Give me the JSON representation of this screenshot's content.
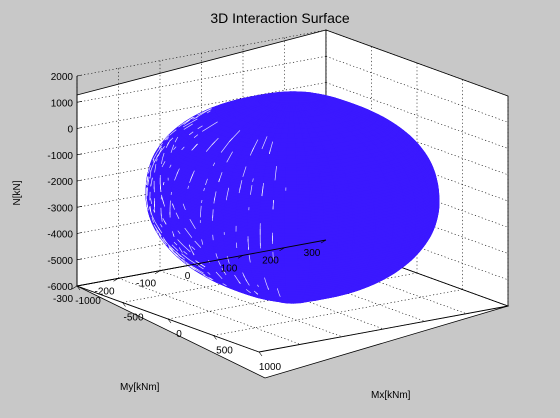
{
  "window": {
    "background": "#c8c8c8"
  },
  "chart_data": {
    "type": "surface",
    "title": "3D Interaction Surface",
    "xlabel": "Mx[kNm]",
    "ylabel": "My[kNm]",
    "zlabel": "N[kN]",
    "xlim": [
      -1000,
      1000
    ],
    "ylim": [
      -300,
      300
    ],
    "zlim": [
      -6000,
      2000
    ],
    "xticks": [
      -1000,
      -500,
      0,
      500,
      1000
    ],
    "yticks": [
      -300,
      -200,
      -100,
      0,
      100,
      200,
      300
    ],
    "zticks": [
      -6000,
      -5000,
      -4000,
      -3000,
      -2000,
      -1000,
      0,
      1000,
      2000
    ],
    "grid": true,
    "surface_color": "#3b18ff",
    "surface": {
      "N_range": [
        -6000,
        1500
      ],
      "Mx_max_abs": 900,
      "My_max_abs": 260,
      "N_at_max_moment": -2300
    }
  }
}
